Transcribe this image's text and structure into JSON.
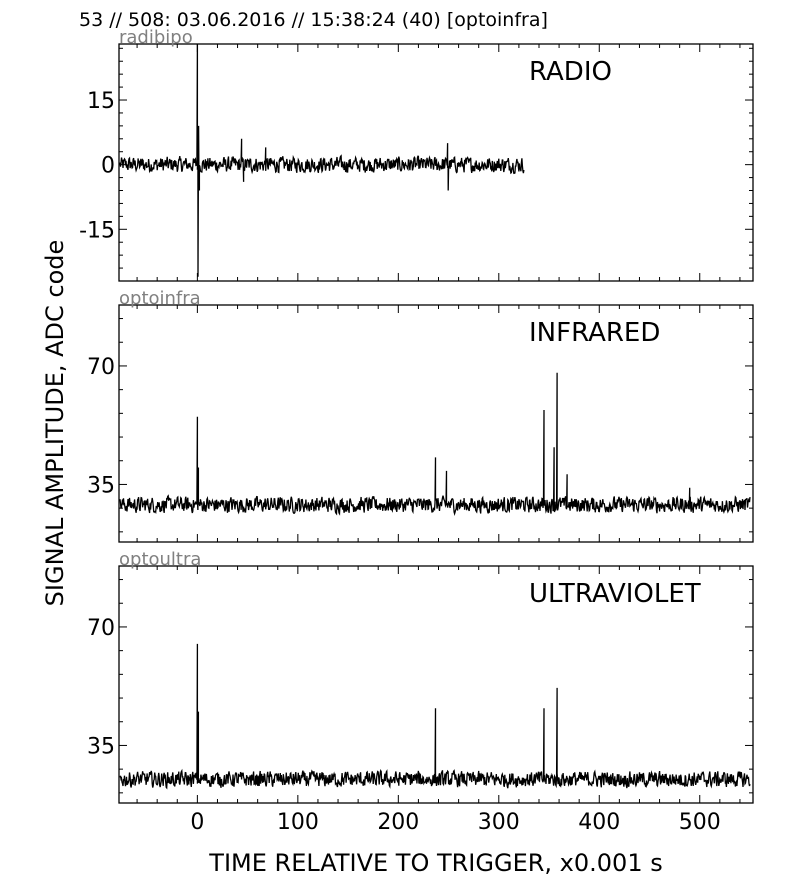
{
  "header": "53 // 508:   03.06.2016 // 15:38:24 (40)  [optoinfra]",
  "xlabel": "TIME RELATIVE TO TRIGGER,   x0.001 s",
  "ylabel": "SIGNAL AMPLITUDE,  ADC code",
  "chart_data": [
    {
      "type": "line",
      "channel": "radibipo",
      "title": "RADIO",
      "xlim": [
        -78,
        553
      ],
      "ylim": [
        -27,
        28
      ],
      "xticks": [
        0,
        100,
        200,
        300,
        400,
        500
      ],
      "yticks": [
        -15,
        0,
        15
      ],
      "ytick_labels": [
        "-15",
        "0",
        "15"
      ],
      "baseline": 0,
      "noise": 1.0,
      "x_end": 325,
      "spikes": [
        {
          "x": 0,
          "y": 28
        },
        {
          "x": 0.6,
          "y": -26
        },
        {
          "x": 1.2,
          "y": 9
        },
        {
          "x": 2,
          "y": -6
        },
        {
          "x": 44,
          "y": 6
        },
        {
          "x": 46,
          "y": -4
        },
        {
          "x": 68,
          "y": 4
        },
        {
          "x": 249,
          "y": 5
        },
        {
          "x": 249.6,
          "y": -6
        }
      ]
    },
    {
      "type": "line",
      "channel": "optoinfra",
      "title": "INFRARED",
      "xlim": [
        -78,
        553
      ],
      "ylim": [
        18,
        88
      ],
      "xticks": [
        0,
        100,
        200,
        300,
        400,
        500
      ],
      "yticks": [
        35,
        70
      ],
      "ytick_labels": [
        "35",
        "70"
      ],
      "baseline": 29,
      "noise": 1.3,
      "x_end": 550,
      "spikes": [
        {
          "x": 0,
          "y": 55
        },
        {
          "x": 1,
          "y": 40
        },
        {
          "x": 237,
          "y": 43
        },
        {
          "x": 248,
          "y": 39
        },
        {
          "x": 345,
          "y": 57
        },
        {
          "x": 355,
          "y": 46
        },
        {
          "x": 358,
          "y": 68
        },
        {
          "x": 368,
          "y": 38
        },
        {
          "x": 490,
          "y": 34
        }
      ]
    },
    {
      "type": "line",
      "channel": "optoultra",
      "title": "ULTRAVIOLET",
      "xlim": [
        -78,
        553
      ],
      "ylim": [
        18,
        88
      ],
      "xticks": [
        0,
        100,
        200,
        300,
        400,
        500
      ],
      "xtick_labels": [
        "0",
        "100",
        "200",
        "300",
        "400",
        "500"
      ],
      "yticks": [
        35,
        70
      ],
      "ytick_labels": [
        "35",
        "70"
      ],
      "baseline": 25,
      "noise": 1.3,
      "x_end": 550,
      "spikes": [
        {
          "x": 0,
          "y": 65
        },
        {
          "x": 1,
          "y": 45
        },
        {
          "x": 237,
          "y": 46
        },
        {
          "x": 345,
          "y": 46
        },
        {
          "x": 358,
          "y": 52
        }
      ]
    }
  ]
}
